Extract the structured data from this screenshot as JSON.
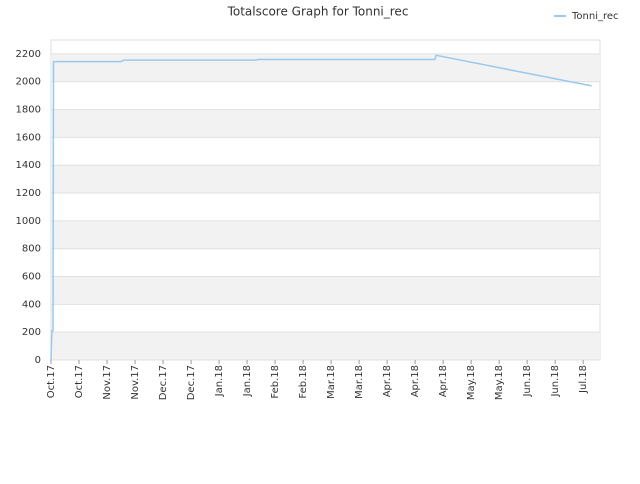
{
  "chart_data": {
    "type": "line",
    "title": "Totalscore Graph for Tonni_rec",
    "x": [
      0,
      0.03,
      0.07,
      0.09,
      2.5,
      2.6,
      7.3,
      7.4,
      13.7,
      13.75,
      19.3
    ],
    "series": [
      {
        "name": "Tonni_rec",
        "color": "#99c8ee",
        "values": [
          0,
          210,
          210,
          2145,
          2145,
          2155,
          2155,
          2160,
          2160,
          2190,
          1970
        ]
      }
    ],
    "xlim": [
      0,
      19.6
    ],
    "xticks": [
      {
        "value": 0,
        "label": "Oct.17"
      },
      {
        "value": 1,
        "label": "Oct.17"
      },
      {
        "value": 2,
        "label": "Nov.17"
      },
      {
        "value": 3,
        "label": "Nov.17"
      },
      {
        "value": 4,
        "label": "Dec.17"
      },
      {
        "value": 5,
        "label": "Dec.17"
      },
      {
        "value": 6,
        "label": "Jan.18"
      },
      {
        "value": 7,
        "label": "Jan.18"
      },
      {
        "value": 8,
        "label": "Feb.18"
      },
      {
        "value": 9,
        "label": "Feb.18"
      },
      {
        "value": 10,
        "label": "Mar.18"
      },
      {
        "value": 11,
        "label": "Mar.18"
      },
      {
        "value": 12,
        "label": "Apr.18"
      },
      {
        "value": 13,
        "label": "Apr.18"
      },
      {
        "value": 14,
        "label": "Apr.18"
      },
      {
        "value": 15,
        "label": "May.18"
      },
      {
        "value": 16,
        "label": "May.18"
      },
      {
        "value": 17,
        "label": "Jun.18"
      },
      {
        "value": 18,
        "label": "Jun.18"
      },
      {
        "value": 19,
        "label": "Jul.18"
      }
    ],
    "ylim": [
      0,
      2300
    ],
    "yticks": [
      0,
      200,
      400,
      600,
      800,
      1000,
      1200,
      1400,
      1600,
      1800,
      2000,
      2200
    ],
    "grid": true,
    "legend": "top-right"
  }
}
